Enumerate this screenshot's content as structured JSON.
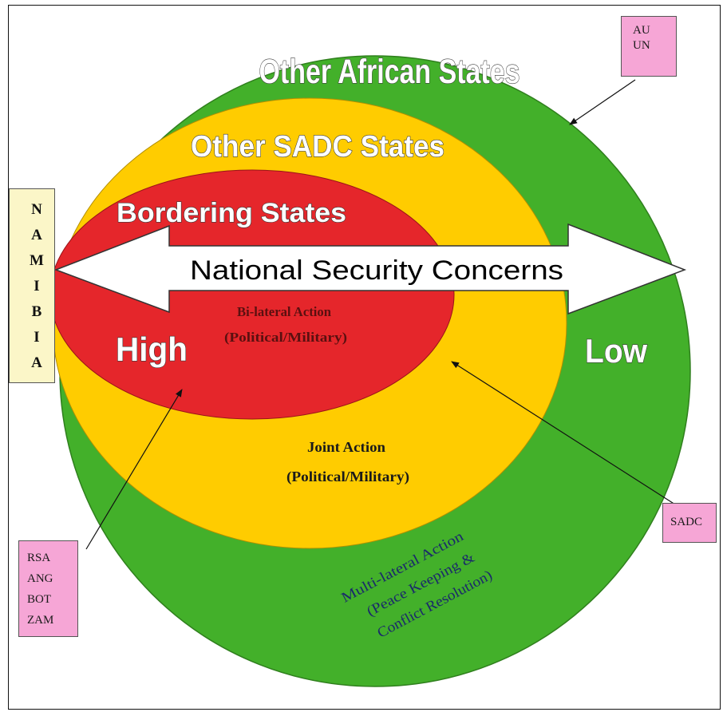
{
  "diagram": {
    "rings": {
      "outer_title": "Other African States",
      "middle_title": "Other SADC States",
      "inner_title": "Bordering States"
    },
    "arrow": {
      "label": "National Security Concerns",
      "high_label": "High",
      "low_label": "Low"
    },
    "actions": {
      "bilateral_line1": "Bi-lateral Action",
      "bilateral_line2": "(Political/Military)",
      "joint_line1": "Joint Action",
      "joint_line2": "(Political/Military)",
      "multilateral_line1": "Multi-lateral Action",
      "multilateral_line2": "(Peace Keeping &",
      "multilateral_line3": "Conflict Resolution)"
    },
    "namibia_letters": [
      "N",
      "A",
      "M",
      "I",
      "B",
      "I",
      "A"
    ],
    "boxes": {
      "au_un": [
        "AU",
        "UN"
      ],
      "sadc": "SADC",
      "bordering": [
        "RSA",
        "ANG",
        "BOT",
        "ZAM"
      ]
    },
    "colors": {
      "outer": "#43b02a",
      "middle": "#ffcc00",
      "inner": "#e5262b",
      "box_pink": "#f6a6d6",
      "namibia_box": "#fbf6c8"
    }
  }
}
